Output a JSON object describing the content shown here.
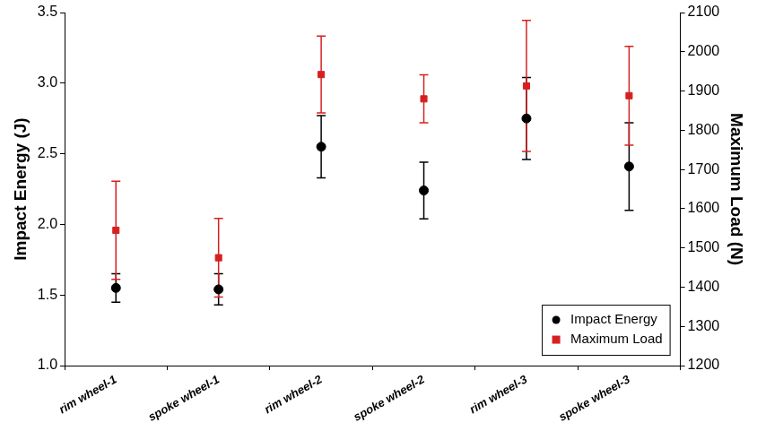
{
  "chart_data": {
    "type": "scatter",
    "categories": [
      "rim wheel-1",
      "spoke wheel-1",
      "rim wheel-2",
      "spoke wheel-2",
      "rim wheel-3",
      "spoke wheel-3"
    ],
    "y_label": "Impact Energy (J)",
    "y2_label": "Maximum Load (N)",
    "ylim": [
      1.0,
      3.5
    ],
    "yticks": [
      {
        "value": 1.0,
        "label": "1.0"
      },
      {
        "value": 1.5,
        "label": "1.5"
      },
      {
        "value": 2.0,
        "label": "2.0"
      },
      {
        "value": 2.5,
        "label": "2.5"
      },
      {
        "value": 3.0,
        "label": "3.0"
      },
      {
        "value": 3.5,
        "label": "3.5"
      }
    ],
    "y2lim": [
      1200,
      2100
    ],
    "y2ticks": [
      1200,
      1300,
      1400,
      1500,
      1600,
      1700,
      1800,
      1900,
      2000,
      2100
    ],
    "grid": false,
    "legend": "lower right",
    "series": [
      {
        "name": "Impact Energy",
        "color": "#000000",
        "marker": "circle",
        "axis": "y",
        "values": [
          1.55,
          1.54,
          2.55,
          2.24,
          2.75,
          2.41
        ],
        "errors": [
          0.1,
          0.11,
          0.22,
          0.2,
          0.29,
          0.31
        ]
      },
      {
        "name": "Maximum Load",
        "color": "#d62020",
        "marker": "square",
        "axis": "y2",
        "values": [
          1545,
          1475,
          1942,
          1880,
          1913,
          1888
        ],
        "errors": [
          125,
          100,
          98,
          61,
          167,
          126
        ]
      }
    ]
  }
}
